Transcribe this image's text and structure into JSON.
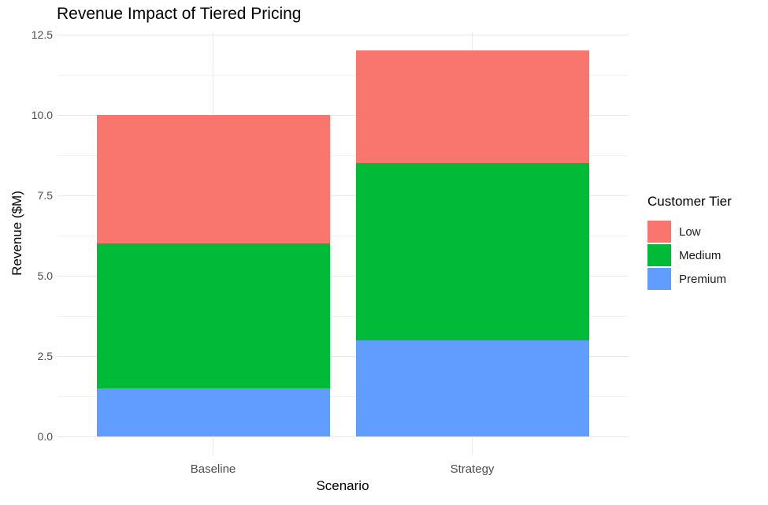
{
  "chart_data": {
    "type": "bar",
    "stacked": true,
    "title": "Revenue Impact of Tiered Pricing",
    "xlabel": "Scenario",
    "ylabel": "Revenue ($M)",
    "categories": [
      "Baseline",
      "Strategy"
    ],
    "series": [
      {
        "name": "Premium",
        "color": "#619CFF",
        "values": [
          1.5,
          3.0
        ]
      },
      {
        "name": "Medium",
        "color": "#00BA38",
        "values": [
          4.5,
          5.5
        ]
      },
      {
        "name": "Low",
        "color": "#F8766D",
        "values": [
          4.0,
          3.5
        ]
      }
    ],
    "totals": [
      10.0,
      12.0
    ],
    "ylim": [
      0,
      12.6
    ],
    "ytick_values": [
      0,
      2.5,
      5,
      7.5,
      10,
      12.5
    ],
    "ytick_labels": [
      "0.0",
      "2.5",
      "5.0",
      "7.5",
      "10.0",
      "12.5"
    ],
    "grid": "horizontal major+minor, vertical at category centers",
    "legend": {
      "title": "Customer Tier",
      "position": "right",
      "entries": [
        "Low",
        "Medium",
        "Premium"
      ]
    },
    "colors": {
      "Low": "#F8766D",
      "Medium": "#00BA38",
      "Premium": "#619CFF",
      "background": "#ffffff",
      "grid_major": "#e8e8e8",
      "grid_minor": "#f2f2f2",
      "tick_text": "#4d4d4d",
      "title_text": "#000000"
    }
  }
}
